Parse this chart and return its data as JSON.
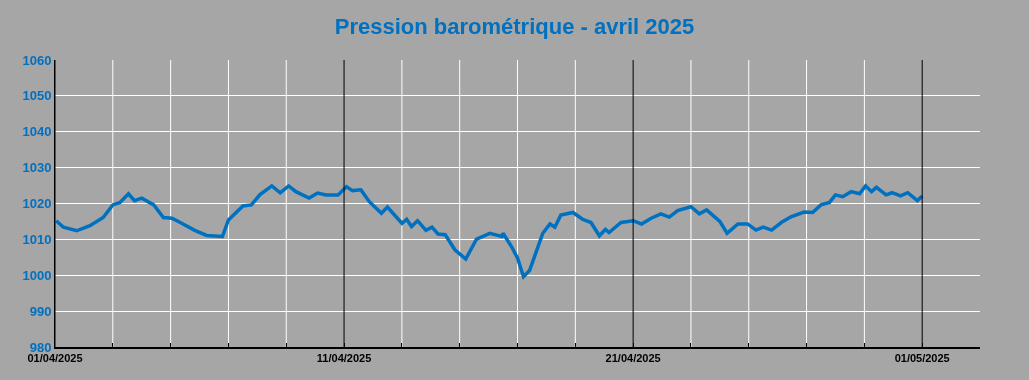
{
  "chart_data": {
    "type": "line",
    "title": "Pression barométrique - avril 2025",
    "x": [
      "2025-04-01T01:00",
      "2025-04-01T07:00",
      "2025-04-01T18:00",
      "2025-04-02T05:00",
      "2025-04-02T16:00",
      "2025-04-03T00:00",
      "2025-04-03T06:00",
      "2025-04-03T13:00",
      "2025-04-03T18:00",
      "2025-04-04T00:00",
      "2025-04-04T10:00",
      "2025-04-04T18:00",
      "2025-04-05T01:00",
      "2025-04-05T08:00",
      "2025-04-05T20:00",
      "2025-04-06T06:00",
      "2025-04-06T19:00",
      "2025-04-07T00:00",
      "2025-04-07T12:00",
      "2025-04-07T19:00",
      "2025-04-08T02:00",
      "2025-04-08T12:00",
      "2025-04-08T19:00",
      "2025-04-09T02:00",
      "2025-04-09T08:00",
      "2025-04-09T19:00",
      "2025-04-10T02:00",
      "2025-04-10T09:00",
      "2025-04-10T19:00",
      "2025-04-11T02:00",
      "2025-04-11T07:00",
      "2025-04-11T14:00",
      "2025-04-11T21:00",
      "2025-04-12T07:00",
      "2025-04-12T12:00",
      "2025-04-13T00:00",
      "2025-04-13T04:00",
      "2025-04-13T08:00",
      "2025-04-13T13:00",
      "2025-04-13T20:00",
      "2025-04-14T01:00",
      "2025-04-14T06:00",
      "2025-04-14T12:00",
      "2025-04-14T20:00",
      "2025-04-15T05:00",
      "2025-04-15T14:00",
      "2025-04-16T01:00",
      "2025-04-16T11:00",
      "2025-04-16T12:00",
      "2025-04-16T19:00",
      "2025-04-17T00:00",
      "2025-04-17T05:00",
      "2025-04-17T10:00",
      "2025-04-17T21:00",
      "2025-04-18T03:00",
      "2025-04-18T07:00",
      "2025-04-18T12:00",
      "2025-04-18T22:00",
      "2025-04-19T06:00",
      "2025-04-19T13:00",
      "2025-04-19T20:00",
      "2025-04-20T01:00",
      "2025-04-20T04:00",
      "2025-04-20T14:00",
      "2025-04-21T00:00",
      "2025-04-21T07:00",
      "2025-04-21T15:00",
      "2025-04-21T23:00",
      "2025-04-22T06:00",
      "2025-04-22T13:00",
      "2025-04-23T00:00",
      "2025-04-23T07:00",
      "2025-04-23T13:00",
      "2025-04-24T00:00",
      "2025-04-24T06:00",
      "2025-04-24T15:00",
      "2025-04-24T23:00",
      "2025-04-25T06:00",
      "2025-04-25T12:00",
      "2025-04-25T19:00",
      "2025-04-26T03:00",
      "2025-04-26T11:00",
      "2025-04-26T22:00",
      "2025-04-27T05:00",
      "2025-04-27T12:00",
      "2025-04-27T19:00",
      "2025-04-28T00:00",
      "2025-04-28T06:00",
      "2025-04-28T13:00",
      "2025-04-28T20:00",
      "2025-04-29T01:00",
      "2025-04-29T06:00",
      "2025-04-29T10:00",
      "2025-04-29T18:00",
      "2025-04-29T23:00",
      "2025-04-30T06:00",
      "2025-04-30T12:00",
      "2025-04-30T20:00",
      "2025-05-01T00:00"
    ],
    "series": [
      {
        "color": "#0070c0",
        "values": [
          1015.2,
          1013.4,
          1012.4,
          1013.8,
          1016.1,
          1019.6,
          1020.3,
          1022.7,
          1020.8,
          1021.5,
          1019.6,
          1016.1,
          1015.9,
          1014.7,
          1012.5,
          1011.1,
          1010.8,
          1015.4,
          1019.3,
          1019.6,
          1022.4,
          1024.9,
          1023.0,
          1024.9,
          1023.3,
          1021.5,
          1022.9,
          1022.4,
          1022.4,
          1024.7,
          1023.6,
          1023.8,
          1020.5,
          1017.3,
          1019.0,
          1014.5,
          1015.6,
          1013.6,
          1015.2,
          1012.5,
          1013.4,
          1011.5,
          1011.3,
          1007.1,
          1004.5,
          1010.1,
          1011.7,
          1010.8,
          1011.7,
          1008.0,
          1004.8,
          999.6,
          1001.3,
          1011.7,
          1014.3,
          1013.4,
          1016.8,
          1017.5,
          1015.6,
          1014.7,
          1011.0,
          1012.8,
          1011.9,
          1014.7,
          1015.2,
          1014.3,
          1015.9,
          1017.1,
          1016.2,
          1018.0,
          1019.1,
          1017.1,
          1018.2,
          1015.0,
          1011.7,
          1014.3,
          1014.3,
          1012.6,
          1013.4,
          1012.6,
          1014.7,
          1016.3,
          1017.6,
          1017.5,
          1019.6,
          1020.3,
          1022.4,
          1021.9,
          1023.3,
          1022.7,
          1024.9,
          1023.3,
          1024.5,
          1022.4,
          1023.0,
          1022.1,
          1023.0,
          1020.8,
          1022.1
        ]
      }
    ],
    "xlim": [
      "2025-04-01",
      "2025-05-03"
    ],
    "xticks": [
      {
        "value": "2025-04-01",
        "label": "01/04/2025"
      },
      {
        "value": "2025-04-03",
        "label": null
      },
      {
        "value": "2025-04-05",
        "label": null
      },
      {
        "value": "2025-04-07",
        "label": null
      },
      {
        "value": "2025-04-09",
        "label": null
      },
      {
        "value": "2025-04-11",
        "label": "11/04/2025"
      },
      {
        "value": "2025-04-13",
        "label": null
      },
      {
        "value": "2025-04-15",
        "label": null
      },
      {
        "value": "2025-04-17",
        "label": null
      },
      {
        "value": "2025-04-19",
        "label": null
      },
      {
        "value": "2025-04-21",
        "label": "21/04/2025"
      },
      {
        "value": "2025-04-23",
        "label": null
      },
      {
        "value": "2025-04-25",
        "label": null
      },
      {
        "value": "2025-04-27",
        "label": null
      },
      {
        "value": "2025-04-29",
        "label": null
      },
      {
        "value": "2025-05-01",
        "label": "01/05/2025"
      }
    ],
    "ylim": [
      980,
      1060
    ],
    "yticks": [
      980,
      990,
      1000,
      1010,
      1020,
      1030,
      1040,
      1050,
      1060
    ],
    "grid": true,
    "marker": "none",
    "line_style": "solid"
  }
}
